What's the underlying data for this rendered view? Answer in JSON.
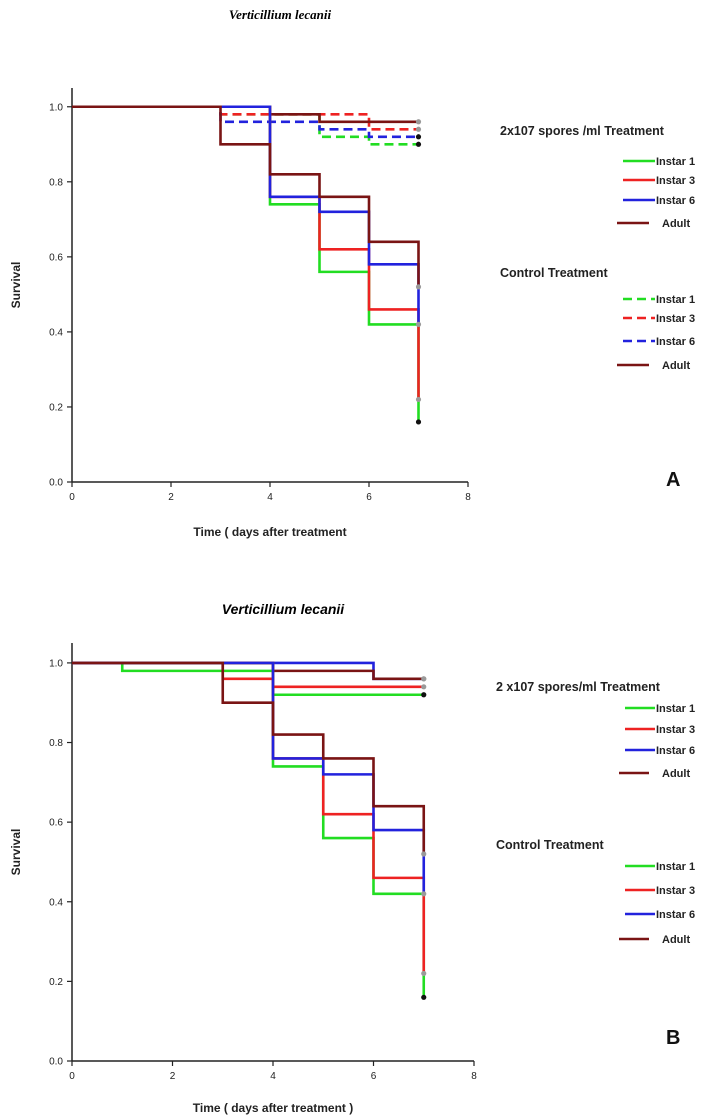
{
  "colors": {
    "instar1": "#22dd22",
    "instar3": "#ee2222",
    "instar6": "#2222dd",
    "adult": "#7a1414"
  },
  "chart_data": [
    {
      "type": "line",
      "step": true,
      "panel": "A",
      "title": "Verticillium lecanii",
      "xlabel": "Time ( days after treatment",
      "ylabel": "Survival",
      "xlim": [
        0,
        8
      ],
      "ylim": [
        0,
        1.05
      ],
      "xticks": [
        "0",
        "2",
        "4",
        "6",
        "8"
      ],
      "yticks": [
        "0.0",
        "0.2",
        "0.4",
        "0.6",
        "0.8",
        "1.0"
      ],
      "grid": false,
      "legend": {
        "position": "right",
        "groups": [
          {
            "heading": "2x107 spores /ml Treatment",
            "style": "solid",
            "items": [
              "Instar 1",
              "Instar 3",
              "Instar 6",
              "Adult"
            ]
          },
          {
            "heading": "Control Treatment",
            "style": "mixed",
            "items": [
              "Instar 1",
              "Instar 3",
              "Instar 6",
              "Adult"
            ]
          }
        ]
      },
      "series": [
        {
          "group": "treated",
          "key": "instar1",
          "dash": false,
          "end": 0.16,
          "points": [
            [
              0,
              1.0
            ],
            [
              4,
              0.74
            ],
            [
              5,
              0.56
            ],
            [
              6,
              0.42
            ],
            [
              7,
              0.16
            ]
          ]
        },
        {
          "group": "treated",
          "key": "instar3",
          "dash": false,
          "end": 0.22,
          "points": [
            [
              0,
              1.0
            ],
            [
              4,
              0.76
            ],
            [
              5,
              0.62
            ],
            [
              6,
              0.46
            ],
            [
              7,
              0.22
            ]
          ]
        },
        {
          "group": "treated",
          "key": "instar6",
          "dash": false,
          "end": 0.42,
          "points": [
            [
              0,
              1.0
            ],
            [
              4,
              0.76
            ],
            [
              5,
              0.72
            ],
            [
              6,
              0.58
            ],
            [
              7,
              0.42
            ]
          ]
        },
        {
          "group": "treated",
          "key": "adult",
          "dash": false,
          "end": 0.52,
          "points": [
            [
              0,
              1.0
            ],
            [
              3,
              0.9
            ],
            [
              4,
              0.82
            ],
            [
              5,
              0.76
            ],
            [
              6,
              0.64
            ],
            [
              7,
              0.52
            ]
          ]
        },
        {
          "group": "control",
          "key": "instar1",
          "dash": true,
          "end": 0.9,
          "points": [
            [
              0,
              1.0
            ],
            [
              3,
              0.98
            ],
            [
              5,
              0.92
            ],
            [
              6,
              0.9
            ],
            [
              7,
              0.9
            ]
          ]
        },
        {
          "group": "control",
          "key": "instar3",
          "dash": true,
          "end": 0.94,
          "points": [
            [
              0,
              1.0
            ],
            [
              3,
              0.98
            ],
            [
              6,
              0.94
            ],
            [
              7,
              0.94
            ]
          ]
        },
        {
          "group": "control",
          "key": "instar6",
          "dash": true,
          "end": 0.92,
          "points": [
            [
              0,
              1.0
            ],
            [
              3,
              0.96
            ],
            [
              5,
              0.94
            ],
            [
              6,
              0.92
            ],
            [
              7,
              0.92
            ]
          ]
        },
        {
          "group": "control",
          "key": "adult",
          "dash": false,
          "end": 0.96,
          "points": [
            [
              0,
              1.0
            ],
            [
              4,
              0.98
            ],
            [
              5,
              0.96
            ],
            [
              7,
              0.96
            ]
          ]
        }
      ]
    },
    {
      "type": "line",
      "step": true,
      "panel": "B",
      "title": "Verticillium lecanii",
      "xlabel": "Time ( days after treatment )",
      "ylabel": "Survival",
      "xlim": [
        0,
        8
      ],
      "ylim": [
        0,
        1.05
      ],
      "xticks": [
        "0",
        "2",
        "4",
        "6",
        "8"
      ],
      "yticks": [
        "0.0",
        "0.2",
        "0.4",
        "0.6",
        "0.8",
        "1.0"
      ],
      "grid": false,
      "legend": {
        "position": "right",
        "groups": [
          {
            "heading": "2 x107 spores/ml Treatment",
            "style": "solid",
            "items": [
              "Instar 1",
              "Instar 3",
              "Instar 6",
              "Adult"
            ]
          },
          {
            "heading": "Control Treatment",
            "style": "solid",
            "items": [
              "Instar 1",
              "Instar 3",
              "Instar 6",
              "Adult"
            ]
          }
        ]
      },
      "series": [
        {
          "group": "treated",
          "key": "instar1",
          "dash": false,
          "end": 0.16,
          "points": [
            [
              0,
              1.0
            ],
            [
              4,
              0.74
            ],
            [
              5,
              0.56
            ],
            [
              6,
              0.42
            ],
            [
              7,
              0.16
            ]
          ]
        },
        {
          "group": "treated",
          "key": "instar3",
          "dash": false,
          "end": 0.22,
          "points": [
            [
              0,
              1.0
            ],
            [
              4,
              0.76
            ],
            [
              5,
              0.62
            ],
            [
              6,
              0.46
            ],
            [
              7,
              0.22
            ]
          ]
        },
        {
          "group": "treated",
          "key": "instar6",
          "dash": false,
          "end": 0.42,
          "points": [
            [
              0,
              1.0
            ],
            [
              4,
              0.76
            ],
            [
              5,
              0.72
            ],
            [
              6,
              0.58
            ],
            [
              7,
              0.42
            ]
          ]
        },
        {
          "group": "treated",
          "key": "adult",
          "dash": false,
          "end": 0.52,
          "points": [
            [
              0,
              1.0
            ],
            [
              3,
              0.9
            ],
            [
              4,
              0.82
            ],
            [
              5,
              0.76
            ],
            [
              6,
              0.64
            ],
            [
              7,
              0.52
            ]
          ]
        },
        {
          "group": "control",
          "key": "instar1",
          "dash": false,
          "end": 0.92,
          "points": [
            [
              0,
              1.0
            ],
            [
              1,
              0.98
            ],
            [
              4,
              0.92
            ],
            [
              7,
              0.92
            ]
          ]
        },
        {
          "group": "control",
          "key": "instar3",
          "dash": false,
          "end": 0.94,
          "points": [
            [
              0,
              1.0
            ],
            [
              3,
              0.96
            ],
            [
              4,
              0.94
            ],
            [
              7,
              0.94
            ]
          ]
        },
        {
          "group": "control",
          "key": "instar6",
          "dash": false,
          "end": 0.96,
          "points": [
            [
              0,
              1.0
            ],
            [
              4,
              1.0
            ],
            [
              6,
              0.96
            ],
            [
              7,
              0.96
            ]
          ]
        },
        {
          "group": "control",
          "key": "adult",
          "dash": false,
          "end": 0.96,
          "points": [
            [
              0,
              1.0
            ],
            [
              4,
              0.98
            ],
            [
              6,
              0.96
            ],
            [
              7,
              0.96
            ]
          ]
        }
      ]
    }
  ]
}
